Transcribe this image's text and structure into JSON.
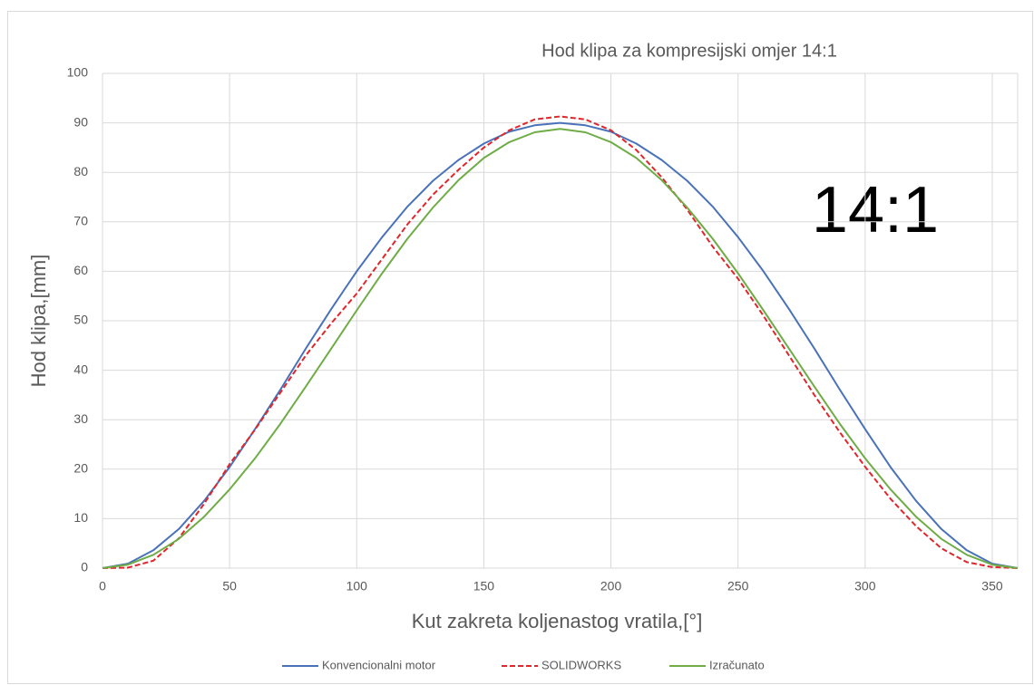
{
  "chart_data": {
    "type": "line",
    "title": "Hod klipa za kompresijski omjer 14:1",
    "annotation": "14:1",
    "x_label": "Kut zakreta koljenastog vratila,[°]",
    "y_label": "Hod klipa,[mm]",
    "x": [
      0,
      10,
      20,
      30,
      40,
      50,
      60,
      70,
      80,
      90,
      100,
      110,
      120,
      130,
      140,
      150,
      160,
      170,
      180,
      190,
      200,
      210,
      220,
      230,
      240,
      250,
      260,
      270,
      280,
      290,
      300,
      310,
      320,
      330,
      340,
      350,
      360
    ],
    "series": [
      {
        "name": "Konvencionalni motor",
        "color": "#4a72b8",
        "dash": false,
        "values": [
          0,
          0.9,
          3.6,
          7.9,
          13.6,
          20.4,
          28.1,
          36.1,
          44.4,
          52.4,
          60.0,
          66.9,
          73.1,
          78.3,
          82.5,
          85.8,
          88.2,
          89.5,
          90,
          89.5,
          88.2,
          85.8,
          82.5,
          78.3,
          73.1,
          66.9,
          60.0,
          52.4,
          44.4,
          36.1,
          28.1,
          20.4,
          13.6,
          7.9,
          3.6,
          0.9,
          0
        ]
      },
      {
        "name": "SOLIDWORKS",
        "color": "#e0262b",
        "dash": true,
        "values": [
          0,
          0.1,
          1.5,
          6,
          13,
          21,
          28,
          35.5,
          43,
          49.5,
          55.5,
          62.5,
          69.5,
          75.5,
          80.5,
          85,
          88.5,
          90.7,
          91.3,
          90.7,
          88.5,
          84.5,
          79,
          72.5,
          65,
          58.5,
          51,
          43,
          35,
          27.5,
          20.5,
          14,
          8.5,
          4,
          1.2,
          0.2,
          0
        ]
      },
      {
        "name": "Izračunato",
        "color": "#6fac46",
        "dash": false,
        "values": [
          0,
          0.7,
          2.7,
          5.9,
          10.4,
          15.9,
          22.2,
          29.2,
          36.7,
          44.4,
          52.1,
          59.6,
          66.6,
          72.9,
          78.4,
          82.9,
          86.1,
          88.1,
          88.8,
          88.1,
          86.1,
          82.9,
          78.4,
          72.9,
          66.6,
          59.6,
          52.1,
          44.4,
          36.7,
          29.2,
          22.2,
          15.9,
          10.4,
          5.9,
          2.7,
          0.7,
          0
        ]
      }
    ],
    "xlim": [
      0,
      360
    ],
    "xticks": [
      0,
      50,
      100,
      150,
      200,
      250,
      300,
      350
    ],
    "ylim": [
      0,
      100
    ],
    "yticks": [
      0,
      10,
      20,
      30,
      40,
      50,
      60,
      70,
      80,
      90,
      100
    ],
    "grid": true,
    "legend": "bottom"
  }
}
